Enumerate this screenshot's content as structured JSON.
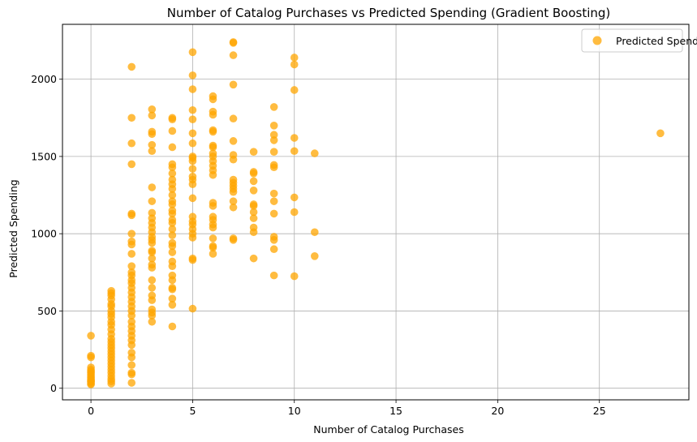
{
  "chart_data": {
    "type": "scatter",
    "title": "Number of Catalog Purchases vs Predicted Spending (Gradient Boosting)",
    "xlabel": "Number of Catalog Purchases",
    "ylabel": "Predicted Spending",
    "xlim": [
      -1.4,
      29.4
    ],
    "ylim": [
      -75,
      2355
    ],
    "x_ticks": [
      0,
      5,
      10,
      15,
      20,
      25
    ],
    "y_ticks": [
      0,
      500,
      1000,
      1500,
      2000
    ],
    "x_tick_labels": [
      "0",
      "5",
      "10",
      "15",
      "20",
      "25"
    ],
    "y_tick_labels": [
      "0",
      "500",
      "1000",
      "1500",
      "2000"
    ],
    "grid": true,
    "legend_position": "top-right",
    "marker_color": "#FFA500",
    "marker_opacity": 0.75,
    "series": [
      {
        "name": "Predicted Spending",
        "points": [
          [
            0,
            340
          ],
          [
            0,
            210
          ],
          [
            0,
            200
          ],
          [
            0,
            135
          ],
          [
            0,
            120
          ],
          [
            0,
            110
          ],
          [
            0,
            100
          ],
          [
            0,
            90
          ],
          [
            0,
            80
          ],
          [
            0,
            70
          ],
          [
            0,
            60
          ],
          [
            0,
            50
          ],
          [
            0,
            45
          ],
          [
            0,
            40
          ],
          [
            0,
            30
          ],
          [
            0,
            25
          ],
          [
            1,
            630
          ],
          [
            1,
            615
          ],
          [
            1,
            600
          ],
          [
            1,
            575
          ],
          [
            1,
            545
          ],
          [
            1,
            530
          ],
          [
            1,
            500
          ],
          [
            1,
            480
          ],
          [
            1,
            460
          ],
          [
            1,
            430
          ],
          [
            1,
            410
          ],
          [
            1,
            380
          ],
          [
            1,
            350
          ],
          [
            1,
            320
          ],
          [
            1,
            300
          ],
          [
            1,
            280
          ],
          [
            1,
            260
          ],
          [
            1,
            240
          ],
          [
            1,
            220
          ],
          [
            1,
            200
          ],
          [
            1,
            180
          ],
          [
            1,
            160
          ],
          [
            1,
            140
          ],
          [
            1,
            120
          ],
          [
            1,
            100
          ],
          [
            1,
            80
          ],
          [
            1,
            60
          ],
          [
            1,
            45
          ],
          [
            1,
            30
          ],
          [
            2,
            2080
          ],
          [
            2,
            1750
          ],
          [
            2,
            1585
          ],
          [
            2,
            1450
          ],
          [
            2,
            1130
          ],
          [
            2,
            1120
          ],
          [
            2,
            1000
          ],
          [
            2,
            950
          ],
          [
            2,
            930
          ],
          [
            2,
            870
          ],
          [
            2,
            790
          ],
          [
            2,
            750
          ],
          [
            2,
            730
          ],
          [
            2,
            700
          ],
          [
            2,
            680
          ],
          [
            2,
            650
          ],
          [
            2,
            620
          ],
          [
            2,
            590
          ],
          [
            2,
            560
          ],
          [
            2,
            530
          ],
          [
            2,
            500
          ],
          [
            2,
            470
          ],
          [
            2,
            430
          ],
          [
            2,
            400
          ],
          [
            2,
            370
          ],
          [
            2,
            340
          ],
          [
            2,
            310
          ],
          [
            2,
            280
          ],
          [
            2,
            230
          ],
          [
            2,
            200
          ],
          [
            2,
            150
          ],
          [
            2,
            100
          ],
          [
            2,
            90
          ],
          [
            2,
            35
          ],
          [
            3,
            1805
          ],
          [
            3,
            1765
          ],
          [
            3,
            1660
          ],
          [
            3,
            1645
          ],
          [
            3,
            1575
          ],
          [
            3,
            1535
          ],
          [
            3,
            1300
          ],
          [
            3,
            1210
          ],
          [
            3,
            1135
          ],
          [
            3,
            1100
          ],
          [
            3,
            1070
          ],
          [
            3,
            1040
          ],
          [
            3,
            1010
          ],
          [
            3,
            980
          ],
          [
            3,
            960
          ],
          [
            3,
            940
          ],
          [
            3,
            890
          ],
          [
            3,
            880
          ],
          [
            3,
            840
          ],
          [
            3,
            800
          ],
          [
            3,
            780
          ],
          [
            3,
            700
          ],
          [
            3,
            650
          ],
          [
            3,
            600
          ],
          [
            3,
            570
          ],
          [
            3,
            510
          ],
          [
            3,
            490
          ],
          [
            3,
            470
          ],
          [
            3,
            430
          ],
          [
            4,
            1750
          ],
          [
            4,
            1740
          ],
          [
            4,
            1665
          ],
          [
            4,
            1560
          ],
          [
            4,
            1450
          ],
          [
            4,
            1430
          ],
          [
            4,
            1390
          ],
          [
            4,
            1350
          ],
          [
            4,
            1320
          ],
          [
            4,
            1290
          ],
          [
            4,
            1250
          ],
          [
            4,
            1210
          ],
          [
            4,
            1190
          ],
          [
            4,
            1150
          ],
          [
            4,
            1130
          ],
          [
            4,
            1090
          ],
          [
            4,
            1070
          ],
          [
            4,
            1030
          ],
          [
            4,
            990
          ],
          [
            4,
            940
          ],
          [
            4,
            920
          ],
          [
            4,
            880
          ],
          [
            4,
            820
          ],
          [
            4,
            790
          ],
          [
            4,
            730
          ],
          [
            4,
            700
          ],
          [
            4,
            650
          ],
          [
            4,
            640
          ],
          [
            4,
            580
          ],
          [
            4,
            540
          ],
          [
            4,
            400
          ],
          [
            5,
            2175
          ],
          [
            5,
            2025
          ],
          [
            5,
            1935
          ],
          [
            5,
            1800
          ],
          [
            5,
            1740
          ],
          [
            5,
            1650
          ],
          [
            5,
            1585
          ],
          [
            5,
            1500
          ],
          [
            5,
            1490
          ],
          [
            5,
            1470
          ],
          [
            5,
            1420
          ],
          [
            5,
            1370
          ],
          [
            5,
            1350
          ],
          [
            5,
            1320
          ],
          [
            5,
            1230
          ],
          [
            5,
            1110
          ],
          [
            5,
            1080
          ],
          [
            5,
            1060
          ],
          [
            5,
            1030
          ],
          [
            5,
            1000
          ],
          [
            5,
            975
          ],
          [
            5,
            840
          ],
          [
            5,
            830
          ],
          [
            5,
            515
          ],
          [
            6,
            1890
          ],
          [
            6,
            1870
          ],
          [
            6,
            1790
          ],
          [
            6,
            1770
          ],
          [
            6,
            1670
          ],
          [
            6,
            1660
          ],
          [
            6,
            1570
          ],
          [
            6,
            1560
          ],
          [
            6,
            1520
          ],
          [
            6,
            1500
          ],
          [
            6,
            1470
          ],
          [
            6,
            1440
          ],
          [
            6,
            1410
          ],
          [
            6,
            1380
          ],
          [
            6,
            1200
          ],
          [
            6,
            1180
          ],
          [
            6,
            1110
          ],
          [
            6,
            1090
          ],
          [
            6,
            1060
          ],
          [
            6,
            1040
          ],
          [
            6,
            970
          ],
          [
            6,
            920
          ],
          [
            6,
            910
          ],
          [
            6,
            870
          ],
          [
            7,
            2240
          ],
          [
            7,
            2235
          ],
          [
            7,
            2155
          ],
          [
            7,
            1965
          ],
          [
            7,
            1745
          ],
          [
            7,
            1600
          ],
          [
            7,
            1510
          ],
          [
            7,
            1480
          ],
          [
            7,
            1350
          ],
          [
            7,
            1330
          ],
          [
            7,
            1310
          ],
          [
            7,
            1290
          ],
          [
            7,
            1270
          ],
          [
            7,
            1210
          ],
          [
            7,
            1170
          ],
          [
            7,
            970
          ],
          [
            7,
            960
          ],
          [
            8,
            1530
          ],
          [
            8,
            1400
          ],
          [
            8,
            1390
          ],
          [
            8,
            1340
          ],
          [
            8,
            1280
          ],
          [
            8,
            1190
          ],
          [
            8,
            1180
          ],
          [
            8,
            1140
          ],
          [
            8,
            1100
          ],
          [
            8,
            1040
          ],
          [
            8,
            1010
          ],
          [
            8,
            840
          ],
          [
            9,
            1820
          ],
          [
            9,
            1700
          ],
          [
            9,
            1640
          ],
          [
            9,
            1605
          ],
          [
            9,
            1530
          ],
          [
            9,
            1445
          ],
          [
            9,
            1430
          ],
          [
            9,
            1260
          ],
          [
            9,
            1210
          ],
          [
            9,
            1130
          ],
          [
            9,
            980
          ],
          [
            9,
            960
          ],
          [
            9,
            900
          ],
          [
            9,
            730
          ],
          [
            10,
            2140
          ],
          [
            10,
            2095
          ],
          [
            10,
            1930
          ],
          [
            10,
            1620
          ],
          [
            10,
            1535
          ],
          [
            10,
            1235
          ],
          [
            10,
            1140
          ],
          [
            10,
            725
          ],
          [
            11,
            1520
          ],
          [
            11,
            1010
          ],
          [
            11,
            855
          ],
          [
            28,
            1650
          ]
        ]
      }
    ]
  }
}
